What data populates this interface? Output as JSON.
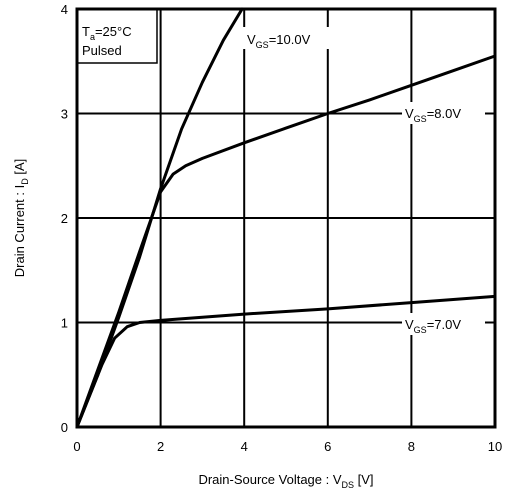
{
  "chart_data": {
    "type": "line",
    "xlabel": {
      "main": "Drain-Source Voltage : V",
      "sub": "DS",
      "unit": " [V]"
    },
    "ylabel": {
      "main": "Drain Current : I",
      "sub": "D",
      "unit": " [A]"
    },
    "xlim": [
      0,
      10
    ],
    "ylim": [
      0,
      4
    ],
    "x_ticks": [
      "0",
      "2",
      "4",
      "6",
      "8",
      "10"
    ],
    "y_ticks": [
      "0",
      "1",
      "2",
      "3",
      "4"
    ],
    "grid": true,
    "conditions": {
      "line1": {
        "main": "T",
        "sub": "a",
        "rest": "=25°C"
      },
      "line2": "Pulsed"
    },
    "series": [
      {
        "name": {
          "main": "V",
          "sub": "GS",
          "rest": "=10.0V"
        },
        "x": [
          0,
          0.5,
          1.0,
          1.5,
          2.0,
          2.5,
          3.0,
          3.5,
          3.95
        ],
        "y": [
          0,
          0.5,
          1.05,
          1.63,
          2.28,
          2.85,
          3.3,
          3.7,
          4.0
        ]
      },
      {
        "name": {
          "main": "V",
          "sub": "GS",
          "rest": "=8.0V"
        },
        "x": [
          0,
          0.5,
          1.0,
          1.5,
          2.0,
          2.3,
          2.6,
          3.0,
          4.0,
          5.0,
          6.0,
          7.0,
          8.0,
          9.0,
          10.0
        ],
        "y": [
          0,
          0.55,
          1.1,
          1.68,
          2.25,
          2.42,
          2.5,
          2.57,
          2.72,
          2.86,
          3.0,
          3.13,
          3.27,
          3.41,
          3.55
        ]
      },
      {
        "name": {
          "main": "V",
          "sub": "GS",
          "rest": "=7.0V"
        },
        "x": [
          0,
          0.3,
          0.6,
          0.9,
          1.2,
          1.5,
          2.0,
          4.0,
          6.0,
          8.0,
          10.0
        ],
        "y": [
          0,
          0.3,
          0.6,
          0.85,
          0.96,
          1.0,
          1.02,
          1.08,
          1.13,
          1.19,
          1.25
        ]
      }
    ]
  }
}
